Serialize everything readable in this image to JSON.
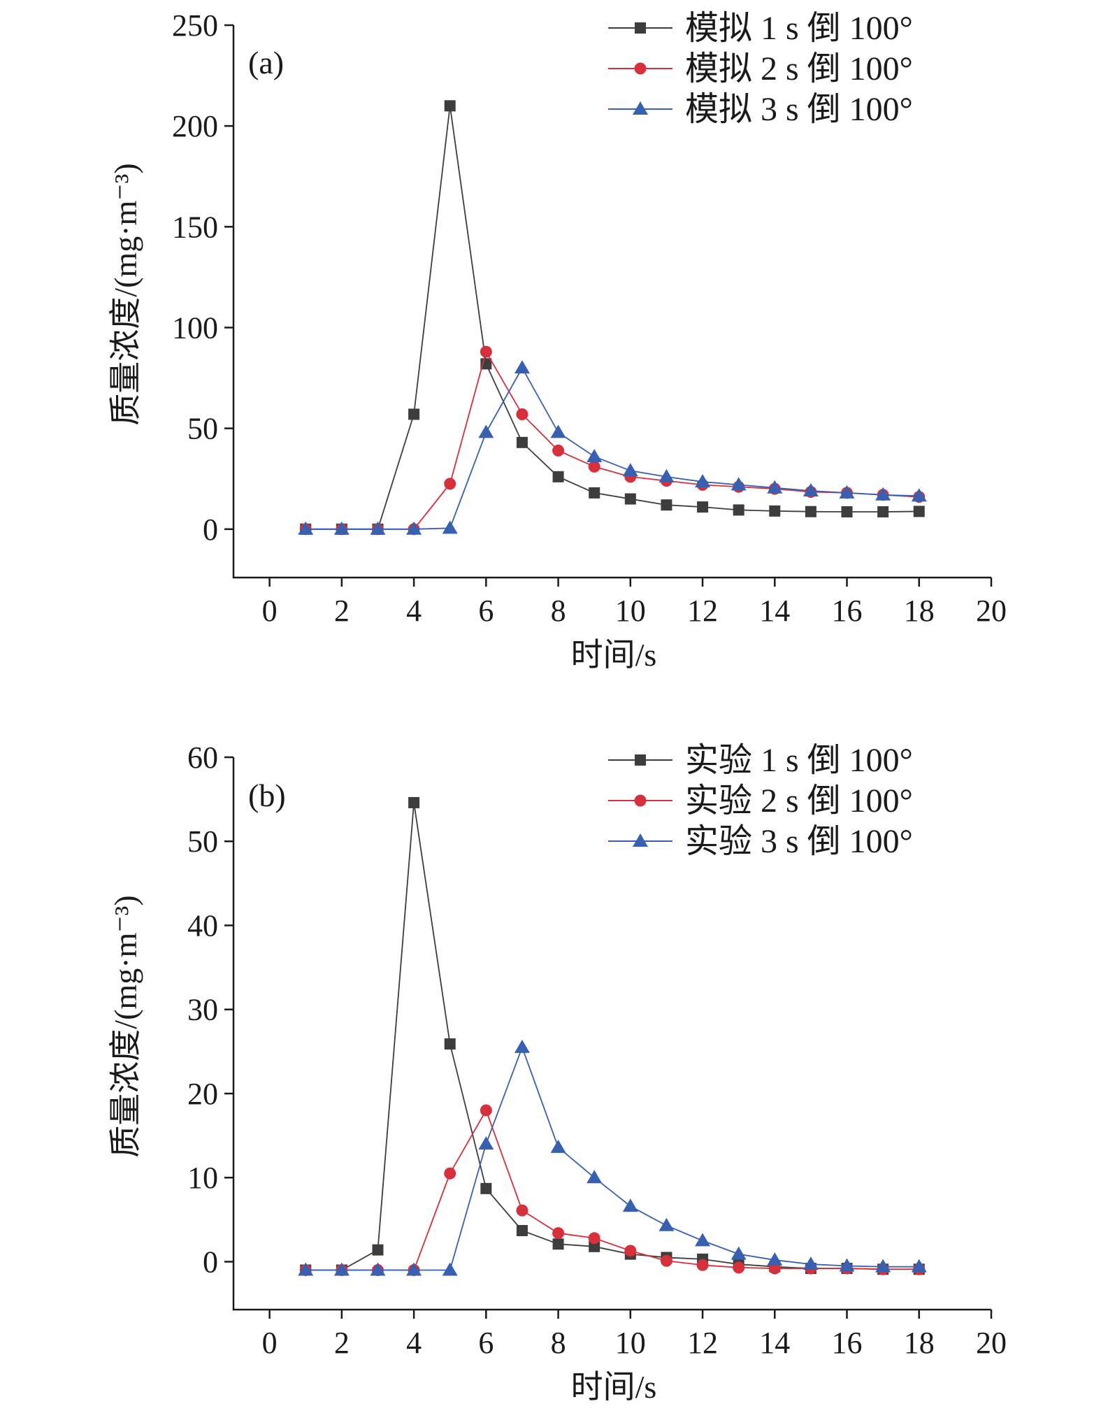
{
  "chart_data": [
    {
      "type": "line",
      "panel_label": "(a)",
      "xlabel": "时间/s",
      "ylabel": "质量浓度/(mg·m⁻³)",
      "xlim": [
        -1,
        20
      ],
      "ylim": [
        -24,
        250
      ],
      "xticks": [
        0,
        2,
        4,
        6,
        8,
        10,
        12,
        14,
        16,
        18,
        20
      ],
      "yticks": [
        0,
        50,
        100,
        150,
        200,
        250
      ],
      "x": [
        1,
        2,
        3,
        4,
        5,
        6,
        7,
        8,
        9,
        10,
        11,
        12,
        13,
        14,
        15,
        16,
        17,
        18
      ],
      "legend_position": "top-right",
      "series": [
        {
          "name": "模拟 1 s 倒 100°",
          "color": "#3d3d3d",
          "marker": "square",
          "values": [
            0,
            0,
            0,
            57,
            210,
            82,
            43,
            26,
            18,
            15,
            12,
            11,
            9.5,
            9,
            8.7,
            8.6,
            8.6,
            8.8
          ]
        },
        {
          "name": "模拟 2 s 倒 100°",
          "color": "#d6303c",
          "marker": "circle",
          "values": [
            0,
            0,
            0,
            0,
            22.5,
            88,
            57,
            39,
            31,
            26,
            24,
            22,
            21,
            20,
            18.5,
            18,
            17,
            16
          ]
        },
        {
          "name": "模拟 3 s 倒 100°",
          "color": "#3860b0",
          "marker": "triangle",
          "values": [
            0,
            0,
            0,
            0,
            0.5,
            48,
            80,
            48,
            36,
            29,
            26,
            23.5,
            22,
            20.5,
            19,
            18,
            17,
            16.5
          ]
        }
      ]
    },
    {
      "type": "line",
      "panel_label": "(b)",
      "xlabel": "时间/s",
      "ylabel": "质量浓度/(mg·m⁻³)",
      "xlim": [
        -1,
        20
      ],
      "ylim": [
        -5.7,
        60
      ],
      "xticks": [
        0,
        2,
        4,
        6,
        8,
        10,
        12,
        14,
        16,
        18,
        20
      ],
      "yticks": [
        0,
        10,
        20,
        30,
        40,
        50,
        60
      ],
      "x": [
        1,
        2,
        3,
        4,
        5,
        6,
        7,
        8,
        9,
        10,
        11,
        12,
        13,
        14,
        15,
        16,
        17,
        18
      ],
      "legend_position": "top-right",
      "series": [
        {
          "name": "实验 1 s 倒 100°",
          "color": "#3d3d3d",
          "marker": "square",
          "values": [
            -1,
            -1,
            1.4,
            54.6,
            25.9,
            8.7,
            3.7,
            2.1,
            1.8,
            0.9,
            0.5,
            0.3,
            -0.3,
            -0.6,
            -0.8,
            -0.8,
            -0.9,
            -0.9
          ]
        },
        {
          "name": "实验 2 s 倒 100°",
          "color": "#d6303c",
          "marker": "circle",
          "values": [
            -1,
            -1,
            -1,
            -1,
            10.5,
            18,
            6.1,
            3.4,
            2.8,
            1.3,
            0.1,
            -0.4,
            -0.7,
            -0.8,
            -0.8,
            -0.8,
            -0.9,
            -0.9
          ]
        },
        {
          "name": "实验 3 s 倒 100°",
          "color": "#3860b0",
          "marker": "triangle",
          "values": [
            -1,
            -1,
            -1,
            -1,
            -1,
            14,
            25.5,
            13.6,
            10,
            6.6,
            4.3,
            2.5,
            0.9,
            0.2,
            -0.3,
            -0.5,
            -0.6,
            -0.6
          ]
        }
      ]
    }
  ]
}
